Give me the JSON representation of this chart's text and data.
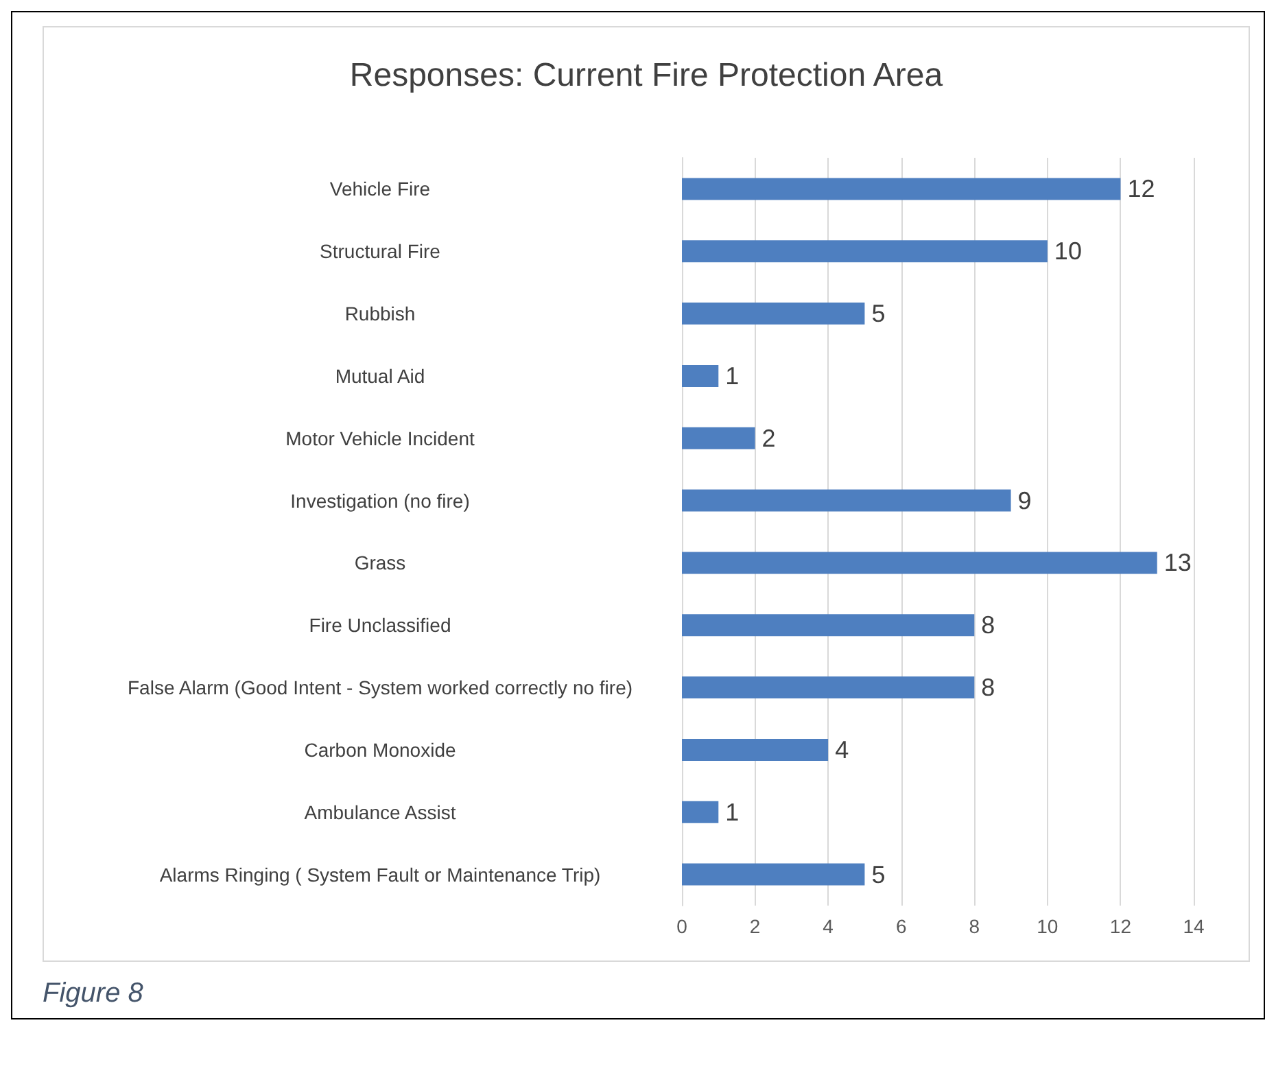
{
  "chart_data": {
    "type": "bar",
    "orientation": "horizontal",
    "title": "Responses: Current Fire Protection Area",
    "categories": [
      "Vehicle Fire",
      "Structural Fire",
      "Rubbish",
      "Mutual Aid",
      "Motor Vehicle Incident",
      "Investigation (no fire)",
      "Grass",
      "Fire Unclassified",
      "False Alarm (Good Intent - System worked correctly no fire)",
      "Carbon Monoxide",
      "Ambulance Assist",
      "Alarms Ringing ( System Fault or Maintenance Trip)"
    ],
    "values": [
      12,
      10,
      5,
      1,
      2,
      9,
      13,
      8,
      8,
      4,
      1,
      5
    ],
    "color": "#4e7fc0",
    "xlim": [
      0,
      14
    ],
    "xticks": [
      0,
      2,
      4,
      6,
      8,
      10,
      12,
      14
    ],
    "grid": "x",
    "data_labels": true,
    "annotations": [
      "Figure 8"
    ]
  }
}
